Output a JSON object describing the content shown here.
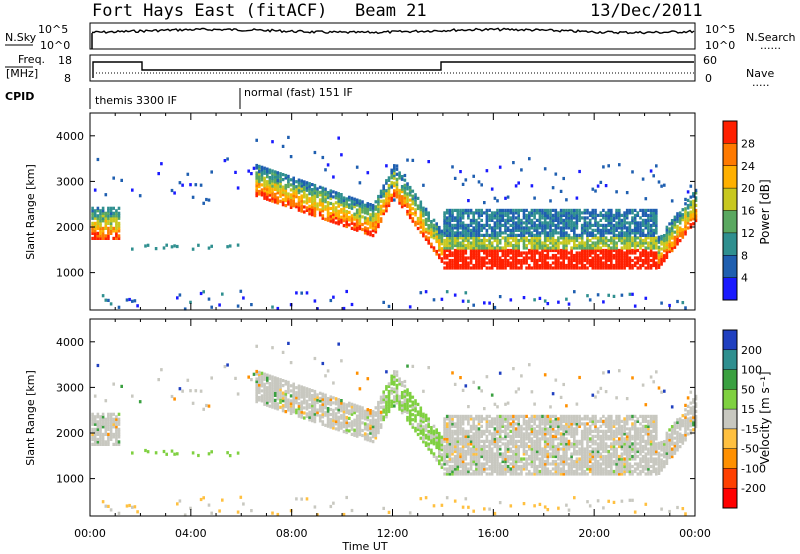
{
  "header": {
    "station": "Fort Hays East (fitACF)",
    "beam": "Beam 21",
    "date": "13/Dec/2011"
  },
  "strip_labels": {
    "nsky": "N.Sky",
    "nsearch": "N.Search",
    "freq_top": "Freq.",
    "freq_unit": "[MHz]",
    "nave": "Nave",
    "cpid": "CPID",
    "exp1": "themis 3300 IF",
    "exp2": "normal (fast) 151 IF",
    "nsky_ticks": [
      "10^5",
      "10^0"
    ],
    "nsearch_ticks": [
      "10^5",
      "10^0"
    ],
    "freq_ticks": [
      "18",
      "8"
    ],
    "nave_ticks": [
      "60",
      "0"
    ],
    "legend_dots": "......",
    "legend_dots2": "....."
  },
  "chart_data": [
    {
      "type": "heatmap",
      "title": "",
      "xlabel": "Time UT",
      "ylabel": "Slant Range [km]",
      "x_ticks": [
        "00:00",
        "04:00",
        "08:00",
        "12:00",
        "16:00",
        "20:00",
        "00:00"
      ],
      "x_range_hours": [
        0,
        24
      ],
      "y_ticks": [
        1000,
        2000,
        3000,
        4000
      ],
      "ylim": [
        180,
        4500
      ],
      "colorbar": {
        "label": "Power [dB]",
        "ticks": [
          4,
          8,
          12,
          16,
          20,
          24,
          28
        ],
        "range": [
          0,
          32
        ],
        "colors": [
          "#1a1aff",
          "#1f5fb0",
          "#2f8f8f",
          "#5aa860",
          "#c8c820",
          "#ffb000",
          "#ff7a00",
          "#ff2000"
        ]
      }
    },
    {
      "type": "heatmap",
      "title": "",
      "xlabel": "Time UT",
      "ylabel": "Slant Range [km]",
      "x_ticks": [
        "00:00",
        "04:00",
        "08:00",
        "12:00",
        "16:00",
        "20:00",
        "00:00"
      ],
      "x_range_hours": [
        0,
        24
      ],
      "y_ticks": [
        1000,
        2000,
        3000,
        4000
      ],
      "ylim": [
        180,
        4500
      ],
      "colorbar": {
        "label": "Velocity [m s⁻¹]",
        "ticks": [
          "200",
          "100",
          "50",
          "15",
          "-15",
          "-50",
          "-100",
          "-200"
        ],
        "colors": [
          "#2040c0",
          "#2f8f8f",
          "#3aa040",
          "#7fd040",
          "#c8c8c0",
          "#ffc040",
          "#ff9000",
          "#ff4000",
          "#ff0000"
        ]
      }
    }
  ]
}
